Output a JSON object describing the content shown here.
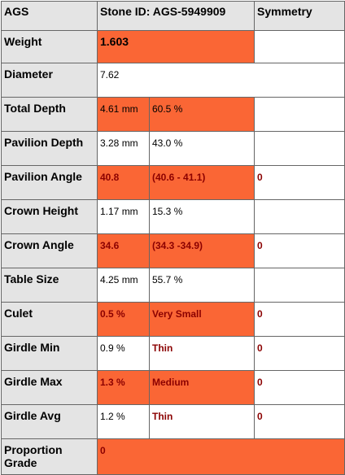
{
  "table": {
    "header": [
      "AGS",
      "Stone ID: AGS-5949909",
      "Symmetry"
    ],
    "rows": [
      {
        "label": "Weight",
        "values": [
          "1.603"
        ]
      },
      {
        "label": "Diameter",
        "values": [
          "7.62"
        ]
      },
      {
        "label": "Total Depth",
        "values": [
          "4.61 mm",
          "60.5 %"
        ]
      },
      {
        "label": "Pavilion Depth",
        "values": [
          "3.28 mm",
          "43.0 %"
        ]
      },
      {
        "label": "Pavilion Angle",
        "values": [
          "40.8",
          "(40.6 - 41.1)",
          "0"
        ]
      },
      {
        "label": "Crown Height",
        "values": [
          "1.17 mm",
          "15.3 %"
        ]
      },
      {
        "label": "Crown Angle",
        "values": [
          "34.6",
          "(34.3 -34.9)",
          "0"
        ]
      },
      {
        "label": "Table Size",
        "values": [
          "4.25 mm",
          "55.7 %"
        ]
      },
      {
        "label": "Culet",
        "values": [
          "0.5 %",
          "Very Small",
          "0"
        ]
      },
      {
        "label": "Girdle Min",
        "values": [
          "0.9 %",
          "Thin",
          "0"
        ]
      },
      {
        "label": "Girdle Max",
        "values": [
          "1.3 %",
          "Medium",
          "0"
        ]
      },
      {
        "label": "Girdle Avg",
        "values": [
          "1.2 %",
          "Thin",
          "0"
        ]
      },
      {
        "label": "Proportion Grade",
        "values": [
          "0"
        ]
      }
    ]
  }
}
